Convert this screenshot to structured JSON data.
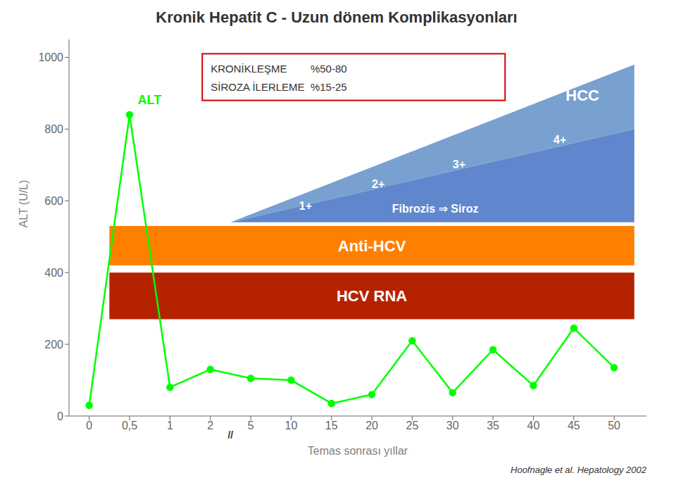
{
  "chart_data": {
    "type": "line",
    "title": "Kronik Hepatit C - Uzun dönem Komplikasyonları",
    "x_label": "Temas sonrası yıllar",
    "y_label": "ALT (U/L)",
    "categories": [
      "0",
      "0,5",
      "1",
      "2",
      "5",
      "10",
      "15",
      "20",
      "25",
      "30",
      "35",
      "40",
      "45",
      "50"
    ],
    "values": [
      30,
      840,
      80,
      130,
      105,
      100,
      35,
      60,
      210,
      65,
      185,
      85,
      245,
      135
    ],
    "color": "#00FF00",
    "marker": "circle",
    "ylim": [
      0,
      1050
    ],
    "yticks": [
      0,
      200,
      400,
      600,
      800,
      1000
    ],
    "grid": false,
    "annotations": [
      {
        "text": "ALT"
      },
      {
        "text": "Anti-HCV",
        "y_range": [
          420,
          530
        ],
        "color": "#FF8000"
      },
      {
        "text": "HCV RNA",
        "y_range": [
          270,
          400
        ],
        "color": "#B52200"
      },
      {
        "text": "Fibrozis ⇒ Siroz",
        "y_left": 540,
        "y_right": [
          540,
          800
        ],
        "color": "#4472C4"
      },
      {
        "text": "HCC",
        "y_left": 540,
        "y_right": [
          800,
          980
        ],
        "color": "#6090C8"
      },
      {
        "text": "1+"
      },
      {
        "text": "2+"
      },
      {
        "text": "3+"
      },
      {
        "text": "4+"
      },
      {
        "text": "KRONİKLEŞME        %50-80"
      },
      {
        "text": "SİROZA İLERLEME  %15-25"
      },
      {
        "text": "//"
      },
      {
        "text": "Hoofnagle et al. Hepatology  2002"
      }
    ]
  }
}
